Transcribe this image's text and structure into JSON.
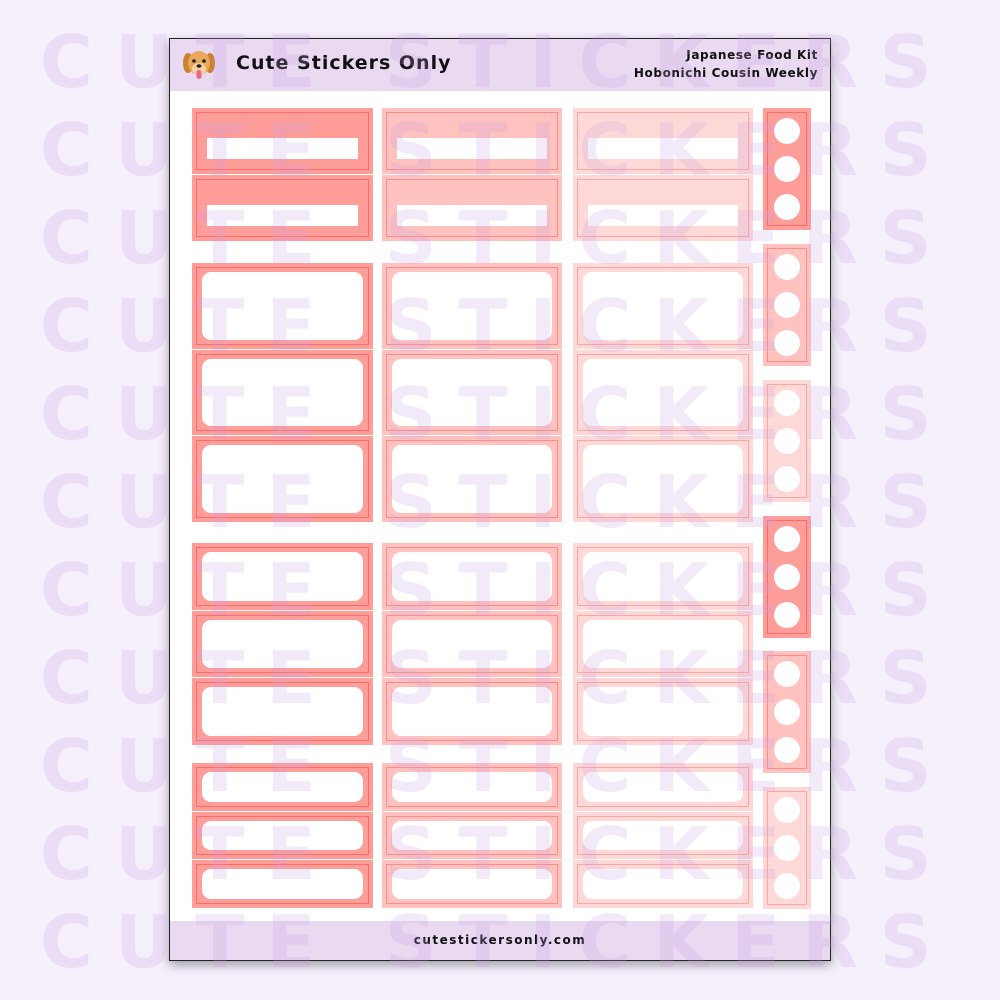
{
  "header": {
    "brand": "Cute Stickers Only",
    "kit_name": "Japanese Food Kit",
    "planner": "Hobonichi Cousin Weekly",
    "logo_icon": "dog-face-icon"
  },
  "footer": {
    "url": "cutestickersonly.com"
  },
  "watermark": {
    "text": "CUTE STICKERS ONLY"
  },
  "colors": {
    "columns": [
      {
        "fill": "#ff9d99",
        "line": "#ff6b6b"
      },
      {
        "fill": "#ffc2bf",
        "line": "#ff8c88"
      },
      {
        "fill": "#ffd9d7",
        "line": "#ffa6a2"
      }
    ],
    "header_band": "#e9d9f1",
    "background": "#f6effc"
  },
  "sections": [
    {
      "type": "header-bar",
      "count": 2
    },
    {
      "type": "box",
      "count": 3
    },
    {
      "type": "box",
      "count": 3
    },
    {
      "type": "box",
      "count": 3
    }
  ],
  "side_strips": {
    "count": 6,
    "dots_each": 3,
    "color_order": [
      0,
      1,
      2,
      0,
      1,
      2
    ]
  }
}
